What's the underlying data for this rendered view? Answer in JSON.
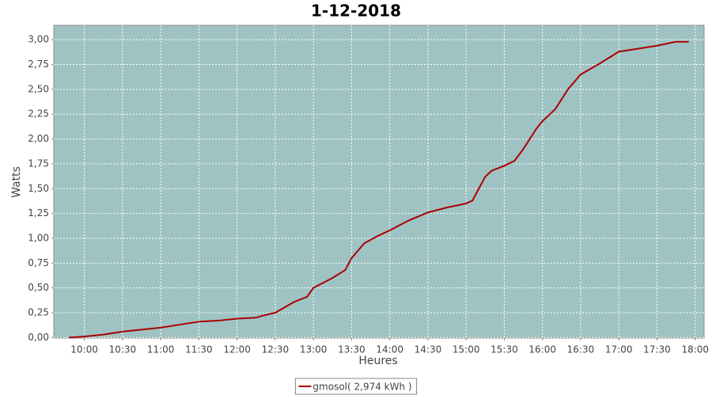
{
  "chart_data": {
    "type": "line",
    "title": "1-12-2018",
    "x_label": "Heures",
    "y_label": "Watts",
    "x": [
      "09:48",
      "10:00",
      "10:15",
      "10:30",
      "10:45",
      "11:00",
      "11:15",
      "11:30",
      "11:45",
      "12:00",
      "12:15",
      "12:20",
      "12:30",
      "12:45",
      "12:55",
      "13:00",
      "13:15",
      "13:25",
      "13:30",
      "13:40",
      "13:50",
      "14:00",
      "14:15",
      "14:30",
      "14:45",
      "15:00",
      "15:05",
      "15:15",
      "15:20",
      "15:30",
      "15:38",
      "15:45",
      "15:55",
      "16:00",
      "16:10",
      "16:20",
      "16:30",
      "16:45",
      "17:00",
      "17:15",
      "17:30",
      "17:45",
      "17:55"
    ],
    "series": [
      {
        "name": "gmosol( 2,974 kWh )",
        "color": "#aa0000",
        "values": [
          0.0,
          0.01,
          0.03,
          0.06,
          0.08,
          0.1,
          0.13,
          0.16,
          0.17,
          0.19,
          0.2,
          0.22,
          0.25,
          0.36,
          0.41,
          0.5,
          0.6,
          0.68,
          0.8,
          0.95,
          1.02,
          1.08,
          1.18,
          1.26,
          1.31,
          1.35,
          1.38,
          1.62,
          1.68,
          1.73,
          1.78,
          1.9,
          2.1,
          2.18,
          2.3,
          2.5,
          2.65,
          2.76,
          2.88,
          2.91,
          2.94,
          2.98,
          2.98
        ]
      }
    ],
    "xlim": [
      "09:36",
      "18:07"
    ],
    "xticks": [
      "10:00",
      "10:30",
      "11:00",
      "11:30",
      "12:00",
      "12:30",
      "13:00",
      "13:30",
      "14:00",
      "14:30",
      "15:00",
      "15:30",
      "16:00",
      "16:30",
      "17:00",
      "17:30",
      "18:00"
    ],
    "ylim": [
      -0.005,
      3.145
    ],
    "yticks": [
      {
        "value": 0,
        "label": "0,00"
      },
      {
        "value": 0.25,
        "label": "0,25"
      },
      {
        "value": 0.5,
        "label": "0,50"
      },
      {
        "value": 0.75,
        "label": "0,75"
      },
      {
        "value": 1,
        "label": "1,00"
      },
      {
        "value": 1.25,
        "label": "1,25"
      },
      {
        "value": 1.5,
        "label": "1,50"
      },
      {
        "value": 1.75,
        "label": "1,75"
      },
      {
        "value": 2,
        "label": "2,00"
      },
      {
        "value": 2.25,
        "label": "2,25"
      },
      {
        "value": 2.5,
        "label": "2,50"
      },
      {
        "value": 2.75,
        "label": "2,75"
      },
      {
        "value": 3,
        "label": "3,00"
      }
    ],
    "grid": true,
    "plot_background": "#9fc3c3",
    "legend": "bottom"
  }
}
